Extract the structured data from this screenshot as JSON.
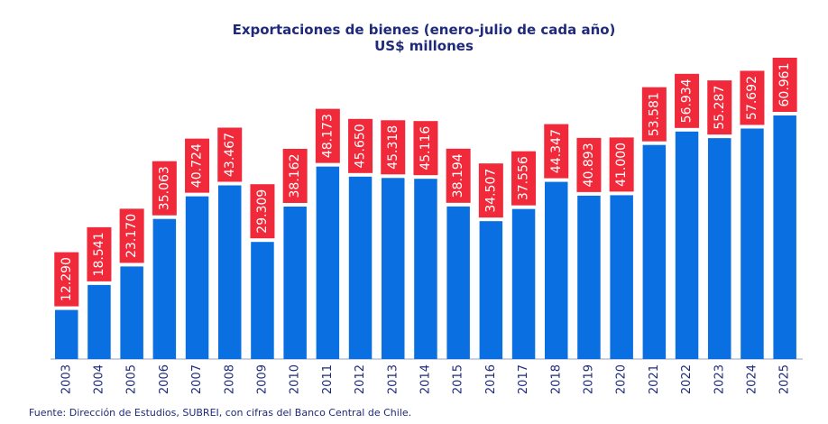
{
  "chart_data": {
    "type": "bar",
    "title": "Exportaciones de bienes (enero-julio de cada año)",
    "subtitle": "US$ millones",
    "categories": [
      "2003",
      "2004",
      "2005",
      "2006",
      "2007",
      "2008",
      "2009",
      "2010",
      "2011",
      "2012",
      "2013",
      "2014",
      "2015",
      "2016",
      "2017",
      "2018",
      "2019",
      "2020",
      "2021",
      "2022",
      "2023",
      "2024",
      "2025"
    ],
    "values": [
      12290,
      18541,
      23170,
      35063,
      40724,
      43467,
      29309,
      38162,
      48173,
      45650,
      45318,
      45116,
      38194,
      34507,
      37556,
      44347,
      40893,
      41000,
      53581,
      56934,
      55287,
      57692,
      60961
    ],
    "data_labels": [
      "12.290",
      "18.541",
      "23.170",
      "35.063",
      "40.724",
      "43.467",
      "29.309",
      "38.162",
      "48.173",
      "45.650",
      "45.318",
      "45.116",
      "38.194",
      "34.507",
      "37.556",
      "44.347",
      "40.893",
      "41.000",
      "53.581",
      "56.934",
      "55.287",
      "57.692",
      "60.961"
    ],
    "ylim": [
      0,
      70000
    ],
    "grid": false,
    "legend": "none",
    "colors": {
      "bar": "#0a6fe0",
      "label_box": "#f02a3a",
      "text": "#1f2a7a"
    }
  },
  "source": "Fuente: Dirección de Estudios, SUBREI, con cifras del Banco Central de Chile."
}
